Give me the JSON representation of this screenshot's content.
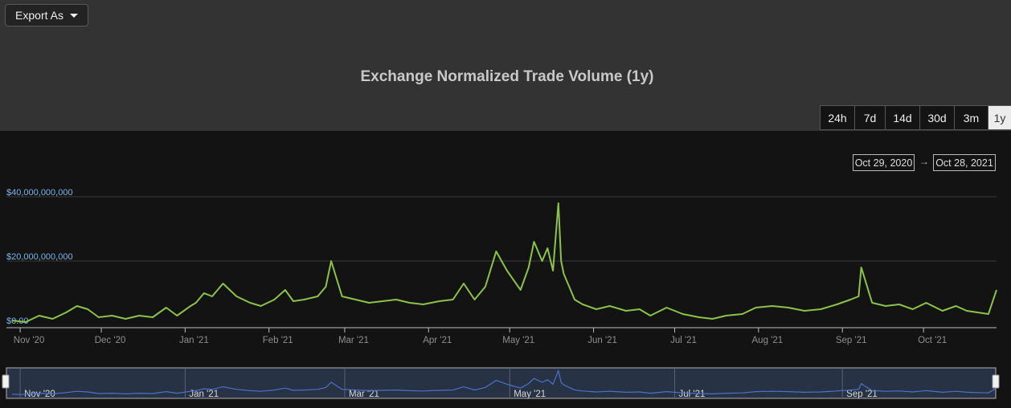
{
  "toolbar": {
    "export_label": "Export As"
  },
  "range_selector": {
    "buttons": [
      "24h",
      "7d",
      "14d",
      "30d",
      "3m",
      "1y"
    ],
    "active": "1y",
    "from_date": "Oct 29, 2020",
    "to_date": "Oct 28, 2021",
    "arrow": "→"
  },
  "colors": {
    "line": "#8bc34a",
    "navigator_line": "#4a72c8",
    "y_label": "#7cb5ec"
  },
  "chart_data": {
    "type": "line",
    "title": "Exchange Normalized Trade Volume (1y)",
    "xlabel": "",
    "ylabel": "",
    "x_range": [
      "2020-10-29",
      "2021-10-28"
    ],
    "ylim": [
      0,
      40000000000
    ],
    "y_ticks": [
      "$0.00",
      "$20,000,000,000",
      "$40,000,000,000"
    ],
    "x_ticks": [
      "Nov '20",
      "Dec '20",
      "Jan '21",
      "Feb '21",
      "Mar '21",
      "Apr '21",
      "May '21",
      "Jun '21",
      "Jul '21",
      "Aug '21",
      "Sep '21",
      "Oct '21"
    ],
    "navigator_ticks": [
      "Nov '20",
      "Jan '21",
      "Mar '21",
      "May '21",
      "Jul '21",
      "Sep '21"
    ],
    "grid": true,
    "legend": "none",
    "series": [
      {
        "x": [
          "2020-10-29",
          "2020-11-03",
          "2020-11-08",
          "2020-11-13",
          "2020-11-18",
          "2020-11-22",
          "2020-11-26",
          "2020-11-30",
          "2020-12-05",
          "2020-12-10",
          "2020-12-15",
          "2020-12-20",
          "2020-12-25",
          "2020-12-29",
          "2021-01-03",
          "2021-01-05",
          "2021-01-08",
          "2021-01-11",
          "2021-01-15",
          "2021-01-20",
          "2021-01-25",
          "2021-01-29",
          "2021-02-03",
          "2021-02-07",
          "2021-02-10",
          "2021-02-14",
          "2021-02-19",
          "2021-02-22",
          "2021-02-24",
          "2021-02-28",
          "2021-03-05",
          "2021-03-10",
          "2021-03-15",
          "2021-03-20",
          "2021-03-25",
          "2021-03-30",
          "2021-04-05",
          "2021-04-10",
          "2021-04-14",
          "2021-04-18",
          "2021-04-22",
          "2021-04-26",
          "2021-04-30",
          "2021-05-05",
          "2021-05-08",
          "2021-05-10",
          "2021-05-13",
          "2021-05-15",
          "2021-05-17",
          "2021-05-19",
          "2021-05-20",
          "2021-05-21",
          "2021-05-23",
          "2021-05-25",
          "2021-05-28",
          "2021-06-02",
          "2021-06-07",
          "2021-06-13",
          "2021-06-18",
          "2021-06-22",
          "2021-06-28",
          "2021-07-04",
          "2021-07-10",
          "2021-07-15",
          "2021-07-20",
          "2021-07-26",
          "2021-07-31",
          "2021-08-06",
          "2021-08-12",
          "2021-08-18",
          "2021-08-24",
          "2021-08-30",
          "2021-09-04",
          "2021-09-07",
          "2021-09-08",
          "2021-09-12",
          "2021-09-17",
          "2021-09-22",
          "2021-09-27",
          "2021-10-02",
          "2021-10-08",
          "2021-10-13",
          "2021-10-17",
          "2021-10-21",
          "2021-10-25",
          "2021-10-28"
        ],
        "y": [
          1500000000,
          1000000000,
          3000000000,
          2000000000,
          4000000000,
          6000000000,
          5000000000,
          2500000000,
          3000000000,
          2000000000,
          3000000000,
          2500000000,
          5500000000,
          3000000000,
          6000000000,
          7000000000,
          10000000000,
          9000000000,
          13000000000,
          9000000000,
          7000000000,
          6000000000,
          8000000000,
          11000000000,
          7500000000,
          8000000000,
          9000000000,
          12000000000,
          20000000000,
          9000000000,
          8000000000,
          7000000000,
          7500000000,
          8000000000,
          7000000000,
          6500000000,
          7500000000,
          8000000000,
          13000000000,
          8000000000,
          12000000000,
          23000000000,
          17000000000,
          11000000000,
          18000000000,
          26000000000,
          20000000000,
          24000000000,
          17000000000,
          38000000000,
          20000000000,
          16000000000,
          12000000000,
          8000000000,
          6500000000,
          5000000000,
          6000000000,
          4500000000,
          5000000000,
          3000000000,
          5500000000,
          3500000000,
          2500000000,
          2000000000,
          3000000000,
          3500000000,
          5500000000,
          6000000000,
          5500000000,
          4500000000,
          5000000000,
          6500000000,
          8000000000,
          9000000000,
          18000000000,
          7000000000,
          6000000000,
          6500000000,
          5000000000,
          7000000000,
          4500000000,
          6000000000,
          4500000000,
          4000000000,
          3500000000,
          11000000000
        ]
      }
    ]
  }
}
